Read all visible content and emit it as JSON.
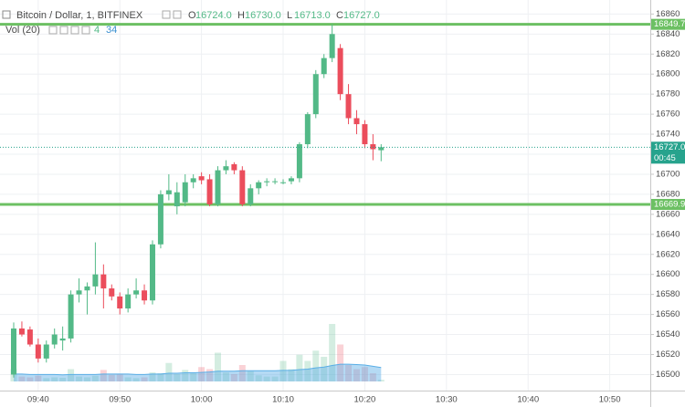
{
  "chart_data": {
    "type": "candlestick",
    "title": "Bitcoin / Dollar, 1, BITFINEX",
    "ohlc_letters": [
      "O",
      "H",
      "L",
      "C"
    ],
    "ohlc_labels": [
      "16724.0",
      "16730.0",
      "16713.0",
      "16727.0"
    ],
    "volume_title": "Vol (20)",
    "countdown": "00:45",
    "up_color": "#53b987",
    "down_color": "#eb4d5c",
    "ma_color": "#5aaee6",
    "categories": [
      null,
      null,
      null,
      "09:40",
      null,
      null,
      null,
      null,
      null,
      null,
      null,
      null,
      null,
      "09:50",
      null,
      null,
      null,
      null,
      null,
      null,
      null,
      null,
      null,
      "10:00",
      null,
      null,
      null,
      null,
      null,
      null,
      null,
      null,
      null,
      "10:10",
      null,
      null,
      null,
      null,
      null,
      null,
      null,
      null,
      null,
      "10:20",
      null,
      null,
      null,
      null,
      null,
      null,
      null,
      null,
      null,
      "10:30",
      null,
      null,
      null,
      null,
      null,
      null,
      null,
      null,
      null,
      "10:40",
      null,
      null,
      null,
      null,
      null,
      null,
      null,
      null,
      null,
      "10:50",
      null,
      null,
      null,
      null,
      null
    ],
    "open": [
      16500,
      16546,
      16545,
      16530,
      16516,
      16530,
      16534,
      16536,
      16580,
      16584,
      16588,
      16600,
      16586,
      16578,
      16566,
      16580,
      16584,
      16574,
      16630,
      16680,
      16668,
      16672,
      16692,
      16698,
      16695,
      16670,
      16704,
      16710,
      16704,
      16670,
      16686,
      16692,
      16693,
      16692,
      16693,
      16696,
      16730,
      16760,
      16800,
      16816,
      16826,
      16780,
      16756,
      16750,
      16730,
      16724,
      null,
      null,
      null,
      null,
      null,
      null,
      null,
      null,
      null,
      null,
      null,
      null,
      null,
      null,
      null,
      null,
      null,
      null,
      null,
      null,
      null,
      null,
      null,
      null,
      null,
      null,
      null,
      null,
      null,
      null,
      null,
      null,
      null
    ],
    "high": [
      16552,
      16553,
      16548,
      16536,
      16534,
      16546,
      16548,
      16584,
      16596,
      16592,
      16632,
      16610,
      16590,
      16582,
      16586,
      16596,
      16590,
      16634,
      16684,
      16700,
      16692,
      16700,
      16700,
      16702,
      16700,
      16708,
      16714,
      16712,
      16708,
      16690,
      16694,
      16696,
      16696,
      16695,
      16698,
      16732,
      16762,
      16804,
      16820,
      16849.7,
      16830,
      16790,
      16764,
      16754,
      16740,
      16730,
      null,
      null,
      null,
      null,
      null,
      null,
      null,
      null,
      null,
      null,
      null,
      null,
      null,
      null,
      null,
      null,
      null,
      null,
      null,
      null,
      null,
      null,
      null,
      null,
      null,
      null,
      null,
      null,
      null,
      null,
      null,
      null,
      null
    ],
    "low": [
      16497,
      16538,
      16528,
      16512,
      16512,
      16526,
      16524,
      16532,
      16572,
      16560,
      16580,
      16566,
      16574,
      16560,
      16562,
      16576,
      16570,
      16570,
      16626,
      16674,
      16660,
      16668,
      16686,
      16690,
      16668,
      16668,
      16700,
      16700,
      16668,
      16668,
      16680,
      16688,
      16690,
      16690,
      16690,
      16692,
      16726,
      16756,
      16796,
      16812,
      16774,
      16750,
      16740,
      16726,
      16714,
      16713,
      null,
      null,
      null,
      null,
      null,
      null,
      null,
      null,
      null,
      null,
      null,
      null,
      null,
      null,
      null,
      null,
      null,
      null,
      null,
      null,
      null,
      null,
      null,
      null,
      null,
      null,
      null,
      null,
      null,
      null,
      null,
      null,
      null
    ],
    "close": [
      16546,
      16540,
      16530,
      16516,
      16530,
      16540,
      16536,
      16580,
      16584,
      16588,
      16600,
      16586,
      16578,
      16566,
      16580,
      16584,
      16574,
      16630,
      16680,
      16684,
      16682,
      16692,
      16696,
      16694,
      16670,
      16704,
      16708,
      16704,
      16670,
      16686,
      16692,
      16693,
      16693,
      16692,
      16696,
      16730,
      16760,
      16800,
      16816,
      16840,
      16780,
      16756,
      16750,
      16730,
      16725,
      16727,
      null,
      null,
      null,
      null,
      null,
      null,
      null,
      null,
      null,
      null,
      null,
      null,
      null,
      null,
      null,
      null,
      null,
      null,
      null,
      null,
      null,
      null,
      null,
      null,
      null,
      null,
      null,
      null,
      null,
      null,
      null,
      null,
      null
    ],
    "volume": [
      30,
      12,
      10,
      14,
      8,
      10,
      9,
      30,
      12,
      10,
      14,
      28,
      16,
      18,
      10,
      8,
      10,
      22,
      20,
      45,
      18,
      28,
      20,
      35,
      30,
      70,
      22,
      18,
      40,
      25,
      15,
      12,
      12,
      50,
      30,
      65,
      50,
      75,
      60,
      140,
      90,
      40,
      30,
      35,
      20,
      4,
      null,
      null,
      null,
      null,
      null,
      null,
      null,
      null,
      null,
      null,
      null,
      null,
      null,
      null,
      null,
      null,
      null,
      null,
      null,
      null,
      null,
      null,
      null,
      null,
      null,
      null,
      null,
      null,
      null,
      null,
      null,
      null,
      null
    ],
    "ma": [
      18,
      18,
      17,
      17,
      17,
      17,
      16,
      17,
      17,
      17,
      17,
      18,
      18,
      18,
      18,
      17,
      17,
      18,
      18,
      20,
      20,
      21,
      21,
      22,
      23,
      25,
      25,
      25,
      26,
      26,
      26,
      26,
      26,
      27,
      27,
      29,
      30,
      33,
      35,
      39,
      42,
      42,
      41,
      40,
      37,
      34,
      null,
      null,
      null,
      null,
      null,
      null,
      null,
      null,
      null,
      null,
      null,
      null,
      null,
      null,
      null,
      null,
      null,
      null,
      null,
      null,
      null,
      null,
      null,
      null,
      null,
      null,
      null,
      null,
      null,
      null,
      null,
      null,
      null
    ],
    "ylim": [
      16484,
      16874
    ],
    "yticks": [
      16500,
      16520,
      16540,
      16560,
      16580,
      16600,
      16620,
      16640,
      16660,
      16680,
      16700,
      16720,
      16740,
      16760,
      16780,
      16800,
      16820,
      16840,
      16860
    ],
    "hlines": [
      {
        "value": 16849.7,
        "color": "#6cc063"
      },
      {
        "value": 16669.9,
        "color": "#6cc063"
      }
    ],
    "last_color": "#27a38d",
    "grid": true
  }
}
